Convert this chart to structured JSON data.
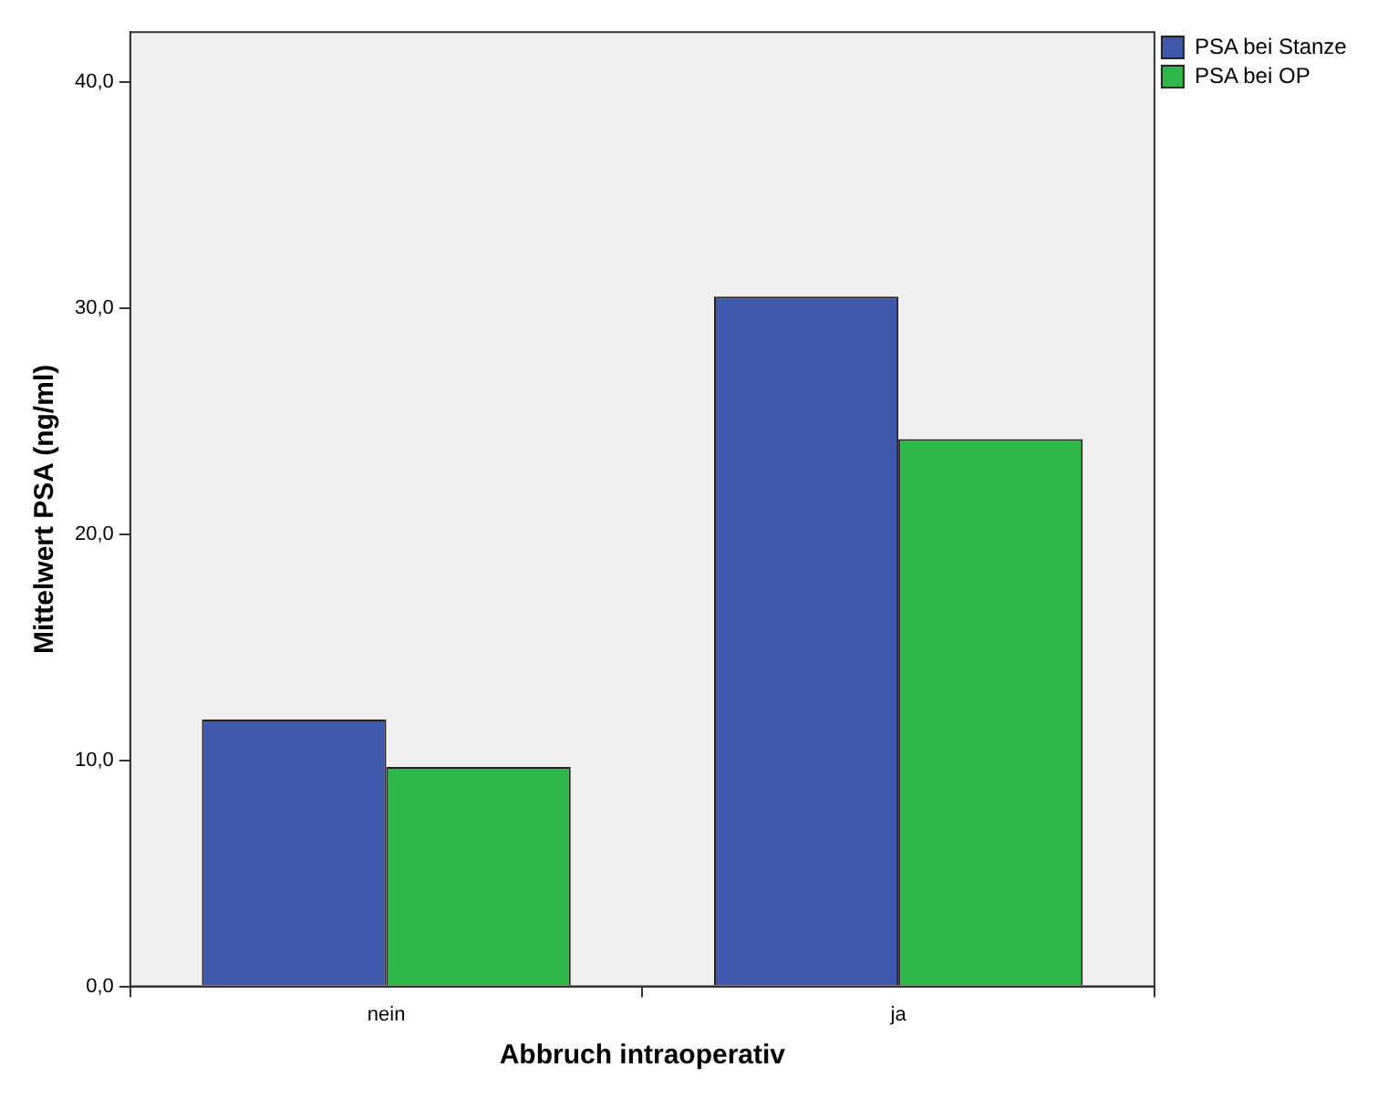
{
  "chart_data": {
    "type": "bar",
    "xlabel": "Abbruch intraoperativ",
    "ylabel": "Mittelwert PSA (ng/ml)",
    "categories": [
      "nein",
      "ja"
    ],
    "series": [
      {
        "name": "PSA bei Stanze",
        "color": "#3f58ab",
        "values": [
          11.8,
          30.5
        ]
      },
      {
        "name": "PSA bei OP",
        "color": "#2fb84a",
        "values": [
          9.7,
          24.2
        ]
      }
    ],
    "ylim": [
      0,
      42.2
    ],
    "yticks": [
      {
        "value": 0,
        "label": "0,0"
      },
      {
        "value": 10,
        "label": "10,0"
      },
      {
        "value": 20,
        "label": "20,0"
      },
      {
        "value": 30,
        "label": "30,0"
      },
      {
        "value": 40,
        "label": "40,0"
      }
    ],
    "grid": false,
    "legend": "top right"
  }
}
